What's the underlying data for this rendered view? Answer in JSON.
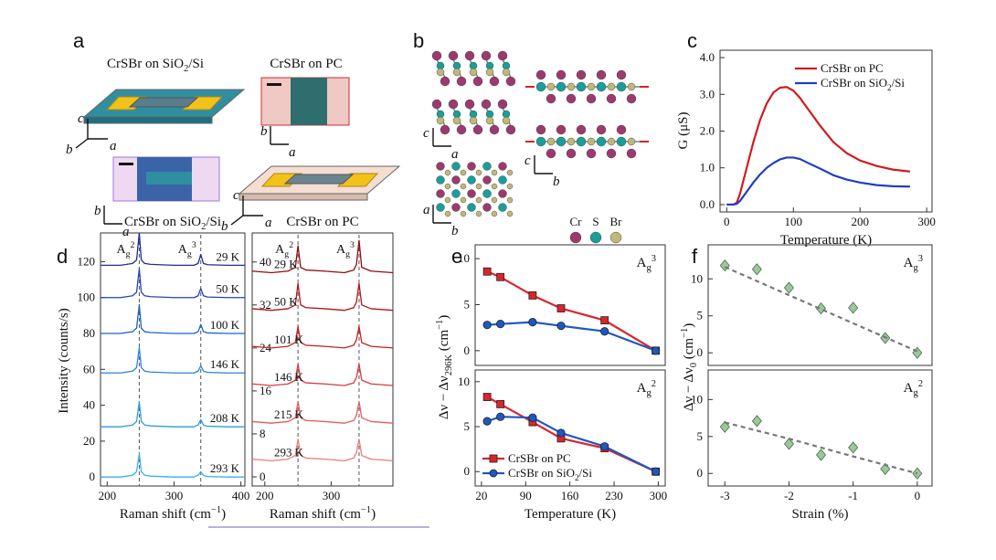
{
  "panel_labels": [
    "a",
    "b",
    "c",
    "d",
    "e",
    "f"
  ],
  "illustrations": {
    "a_titles": [
      [
        {
          "text": "CrSBr on SiO"
        },
        {
          "sub": "2"
        },
        {
          "text": "/Si"
        }
      ],
      "CrSBr on PC"
    ],
    "a_axes": [
      [
        "c",
        "b",
        "a"
      ],
      [
        "b",
        "a"
      ],
      [
        "b",
        "a"
      ],
      [
        "c",
        "b",
        "a"
      ]
    ],
    "b_axes": [
      [
        "c",
        "a"
      ],
      [
        "a",
        "b"
      ],
      [
        "c",
        "b"
      ]
    ],
    "b_legend": [
      "Cr",
      "S",
      "Br"
    ]
  },
  "chart_data": [
    {
      "type": "line",
      "xlabel": "Temperature (K)",
      "ylabel": "G (μS)",
      "x": [
        0,
        10,
        15,
        20,
        30,
        40,
        50,
        60,
        70,
        80,
        90,
        100,
        110,
        120,
        140,
        160,
        180,
        200,
        225,
        250,
        275
      ],
      "xlim": [
        -10,
        308
      ],
      "xticks": [
        0,
        100,
        200,
        300
      ],
      "ylim": [
        -0.2,
        4.2
      ],
      "yticks": [
        {
          "value": 0,
          "label": "0.0"
        },
        {
          "value": 1,
          "label": "1.0"
        },
        {
          "value": 2,
          "label": "2.0"
        },
        {
          "value": 3,
          "label": "3.0"
        },
        {
          "value": 4,
          "label": "4.0"
        }
      ],
      "legend": "upper right",
      "series": [
        {
          "name": "CrSBr on PC",
          "color": "#d01c1f",
          "values": [
            0,
            0,
            0.05,
            0.3,
            1.0,
            1.7,
            2.3,
            2.75,
            3.05,
            3.18,
            3.2,
            3.1,
            2.9,
            2.65,
            2.15,
            1.7,
            1.4,
            1.2,
            1.05,
            0.95,
            0.9
          ]
        },
        {
          "name": [
            {
              "text": "CrSBr on SiO"
            },
            {
              "sub": "2"
            },
            {
              "text": "/Si"
            }
          ],
          "color": "#1f3fbf",
          "values": [
            0,
            0,
            0.02,
            0.1,
            0.35,
            0.6,
            0.82,
            1.0,
            1.13,
            1.23,
            1.28,
            1.28,
            1.24,
            1.15,
            0.98,
            0.8,
            0.68,
            0.6,
            0.53,
            0.5,
            0.49
          ]
        }
      ]
    },
    {
      "type": "line",
      "title": [
        {
          "text": "CrSBr on SiO"
        },
        {
          "sub": "2"
        },
        {
          "text": "/Si"
        }
      ],
      "title_color": "#1f2f9a",
      "xlabel": [
        {
          "text": "Raman shift (cm"
        },
        {
          "sup": "−1"
        },
        {
          "text": ")"
        }
      ],
      "ylabel": "Intensity (counts/s)",
      "x": [
        190,
        220,
        238,
        244,
        248,
        251,
        256,
        265,
        300,
        330,
        336,
        340,
        344,
        350,
        380,
        406
      ],
      "xlim": [
        190,
        406
      ],
      "xticks": [
        200,
        300,
        400
      ],
      "ylim": [
        -5,
        136
      ],
      "yticks": [
        0,
        20,
        40,
        60,
        80,
        100,
        120
      ],
      "vlines": [
        248,
        340
      ],
      "peak_labels": [
        [
          {
            "text": "A"
          },
          {
            "sub": "g"
          },
          {
            "sup": "2"
          }
        ],
        [
          {
            "text": "A"
          },
          {
            "sub": "g"
          },
          {
            "sup": "3"
          }
        ]
      ],
      "series": [
        {
          "name": "29 K",
          "color": "#1f2f8f",
          "values": [
            118,
            118,
            119,
            121,
            136,
            121,
            119,
            118.5,
            118,
            118,
            119,
            124,
            119,
            118.3,
            118,
            118
          ]
        },
        {
          "name": "50 K",
          "color": "#1f46b0",
          "values": [
            100,
            100,
            101,
            103,
            116,
            103,
            101,
            100.5,
            100,
            100,
            101,
            105,
            101,
            100.3,
            100,
            100
          ]
        },
        {
          "name": "100 K",
          "color": "#1f63c8",
          "values": [
            80,
            80,
            81,
            83,
            96,
            83,
            81,
            80.5,
            80,
            80,
            81,
            85,
            81,
            80.3,
            80,
            80
          ]
        },
        {
          "name": "146 K",
          "color": "#2a82d8",
          "values": [
            58,
            58,
            59,
            61,
            72,
            61,
            59,
            58.5,
            58,
            58,
            59,
            62,
            59,
            58.3,
            58,
            58
          ]
        },
        {
          "name": "208 K",
          "color": "#2d9be3",
          "values": [
            28,
            28,
            29,
            31,
            42,
            31,
            29,
            28.5,
            28,
            28,
            29,
            32,
            29,
            28.3,
            28,
            28
          ]
        },
        {
          "name": "293 K",
          "color": "#38b0ea",
          "values": [
            0,
            0,
            1,
            3,
            13,
            3,
            1,
            0.5,
            0,
            0,
            1,
            3,
            1,
            0.3,
            0,
            0
          ]
        }
      ]
    },
    {
      "type": "line",
      "title": "CrSBr on PC",
      "title_color": "#b0141a",
      "xlabel": [
        {
          "text": "Raman shift (cm"
        },
        {
          "sup": "−1"
        },
        {
          "text": ")"
        }
      ],
      "x": [
        181,
        210,
        235,
        246,
        250,
        254,
        262,
        290,
        320,
        334,
        338,
        342,
        346,
        360,
        393
      ],
      "xlim": [
        181,
        393
      ],
      "xticks": [
        200,
        300
      ],
      "ylim": [
        -1.7,
        45.4
      ],
      "yticks": [
        0,
        8,
        16,
        24,
        32,
        40
      ],
      "vlines": [
        250,
        342
      ],
      "peak_labels": [
        [
          {
            "text": "A"
          },
          {
            "sub": "g"
          },
          {
            "sup": "2"
          }
        ],
        [
          {
            "text": "A"
          },
          {
            "sub": "g"
          },
          {
            "sup": "3"
          }
        ]
      ],
      "series": [
        {
          "name": "29 K",
          "color": "#8e0f12",
          "values": [
            38.3,
            38,
            38.3,
            39,
            43,
            39,
            38.5,
            38.3,
            38,
            38.5,
            39.5,
            44,
            39,
            38.3,
            38
          ]
        },
        {
          "name": "50 K",
          "color": "#b0141a",
          "values": [
            31.3,
            31,
            31.3,
            32,
            36,
            32,
            31.5,
            31.3,
            31,
            31.5,
            32.5,
            36,
            32,
            31.3,
            31
          ]
        },
        {
          "name": "101 K",
          "color": "#c92026",
          "values": [
            24.3,
            24,
            24.3,
            25,
            28,
            25,
            24.5,
            24.3,
            24,
            24.5,
            25.5,
            28,
            25,
            24.3,
            24
          ]
        },
        {
          "name": "146 K",
          "color": "#d83a3f",
          "values": [
            17.3,
            17,
            17.3,
            18,
            21,
            18,
            17.5,
            17.3,
            17,
            17.5,
            18.5,
            21,
            18,
            17.3,
            17
          ]
        },
        {
          "name": "215 K",
          "color": "#e55a5e",
          "values": [
            10.3,
            10,
            10.3,
            11,
            14,
            11,
            10.5,
            10.3,
            10,
            10.5,
            11.5,
            14,
            11,
            10.3,
            10
          ]
        },
        {
          "name": "293 K",
          "color": "#ee7a7c",
          "values": [
            3.3,
            3,
            3.3,
            4,
            7,
            4,
            3.5,
            3.3,
            3,
            3.5,
            4.5,
            7,
            4,
            3.3,
            3
          ]
        }
      ]
    },
    {
      "type": "line",
      "ylabel": [
        {
          "text": "Δν − Δν"
        },
        {
          "sub": "296K"
        },
        {
          "text": " (cm"
        },
        {
          "sup": "−1"
        },
        {
          "text": ")"
        }
      ],
      "annotation": [
        {
          "text": "A"
        },
        {
          "sub": "g"
        },
        {
          "sup": "3"
        }
      ],
      "x": [
        29,
        50,
        101,
        146,
        215,
        296
      ],
      "xlim": [
        10,
        311
      ],
      "ylim": [
        -1.6,
        11.5
      ],
      "yticks": [
        0,
        5,
        10
      ],
      "series": [
        {
          "color": "#d9262c",
          "marker": "square",
          "values": [
            8.6,
            8.0,
            6.0,
            4.6,
            3.3,
            0
          ]
        },
        {
          "color": "#1f57c3",
          "marker": "circle",
          "values": [
            2.8,
            2.9,
            3.1,
            2.7,
            2.1,
            0
          ]
        }
      ]
    },
    {
      "type": "line",
      "xlabel": "Temperature (K)",
      "annotation": [
        {
          "text": "A"
        },
        {
          "sub": "g"
        },
        {
          "sup": "2"
        }
      ],
      "x": [
        29,
        50,
        101,
        146,
        215,
        296
      ],
      "xlim": [
        10,
        311
      ],
      "xticks": [
        20,
        90,
        160,
        230,
        300
      ],
      "ylim": [
        -1.6,
        11.3
      ],
      "yticks": [
        0,
        5,
        10
      ],
      "legend": "lower left",
      "series": [
        {
          "name": "CrSBr on PC",
          "color": "#d9262c",
          "marker": "square",
          "values": [
            8.3,
            7.5,
            5.5,
            3.7,
            2.6,
            0
          ]
        },
        {
          "name": [
            {
              "text": "CrSBr on SiO"
            },
            {
              "sub": "2"
            },
            {
              "text": "/Si"
            }
          ],
          "color": "#1f57c3",
          "marker": "circle",
          "values": [
            5.6,
            6.1,
            6.0,
            4.3,
            2.8,
            0
          ]
        }
      ]
    },
    {
      "type": "scatter",
      "ylabel": [
        {
          "text": "Δν − Δν"
        },
        {
          "sub": "0"
        },
        {
          "text": " (cm"
        },
        {
          "sup": "−1"
        },
        {
          "text": ")"
        }
      ],
      "annotation": [
        {
          "text": "A"
        },
        {
          "sub": "g"
        },
        {
          "sup": "3"
        }
      ],
      "x": [
        -3,
        -2.5,
        -2,
        -1.5,
        -1,
        -0.5,
        0
      ],
      "xlim": [
        -3.26,
        0.23
      ],
      "ylim": [
        -1.7,
        14.6
      ],
      "yticks": [
        0,
        5,
        10
      ],
      "series": [
        {
          "color": "#9cc79c",
          "marker": "diamond",
          "values": [
            11.8,
            11.3,
            8.8,
            6.0,
            6.1,
            2.0,
            0
          ]
        },
        {
          "color": "#777777",
          "dash": true,
          "x": [
            -3,
            0
          ],
          "values": [
            11.6,
            0.2
          ]
        }
      ]
    },
    {
      "type": "scatter",
      "xlabel": "Strain (%)",
      "annotation": [
        {
          "text": "A"
        },
        {
          "sub": "g"
        },
        {
          "sup": "2"
        }
      ],
      "x": [
        -3,
        -2.5,
        -2,
        -1.5,
        -1,
        -0.5,
        0
      ],
      "xlim": [
        -3.26,
        0.23
      ],
      "xticks": [
        -3,
        -2,
        -1,
        0
      ],
      "ylim": [
        -1.7,
        14
      ],
      "yticks": [
        0,
        5,
        10
      ],
      "series": [
        {
          "color": "#9cc79c",
          "marker": "diamond",
          "values": [
            6.3,
            7.1,
            4.0,
            2.5,
            3.5,
            0.6,
            0
          ]
        },
        {
          "color": "#777777",
          "dash": true,
          "x": [
            -3,
            -2,
            -1,
            0
          ],
          "values": [
            6.9,
            4.7,
            2.3,
            0
          ]
        }
      ]
    }
  ]
}
